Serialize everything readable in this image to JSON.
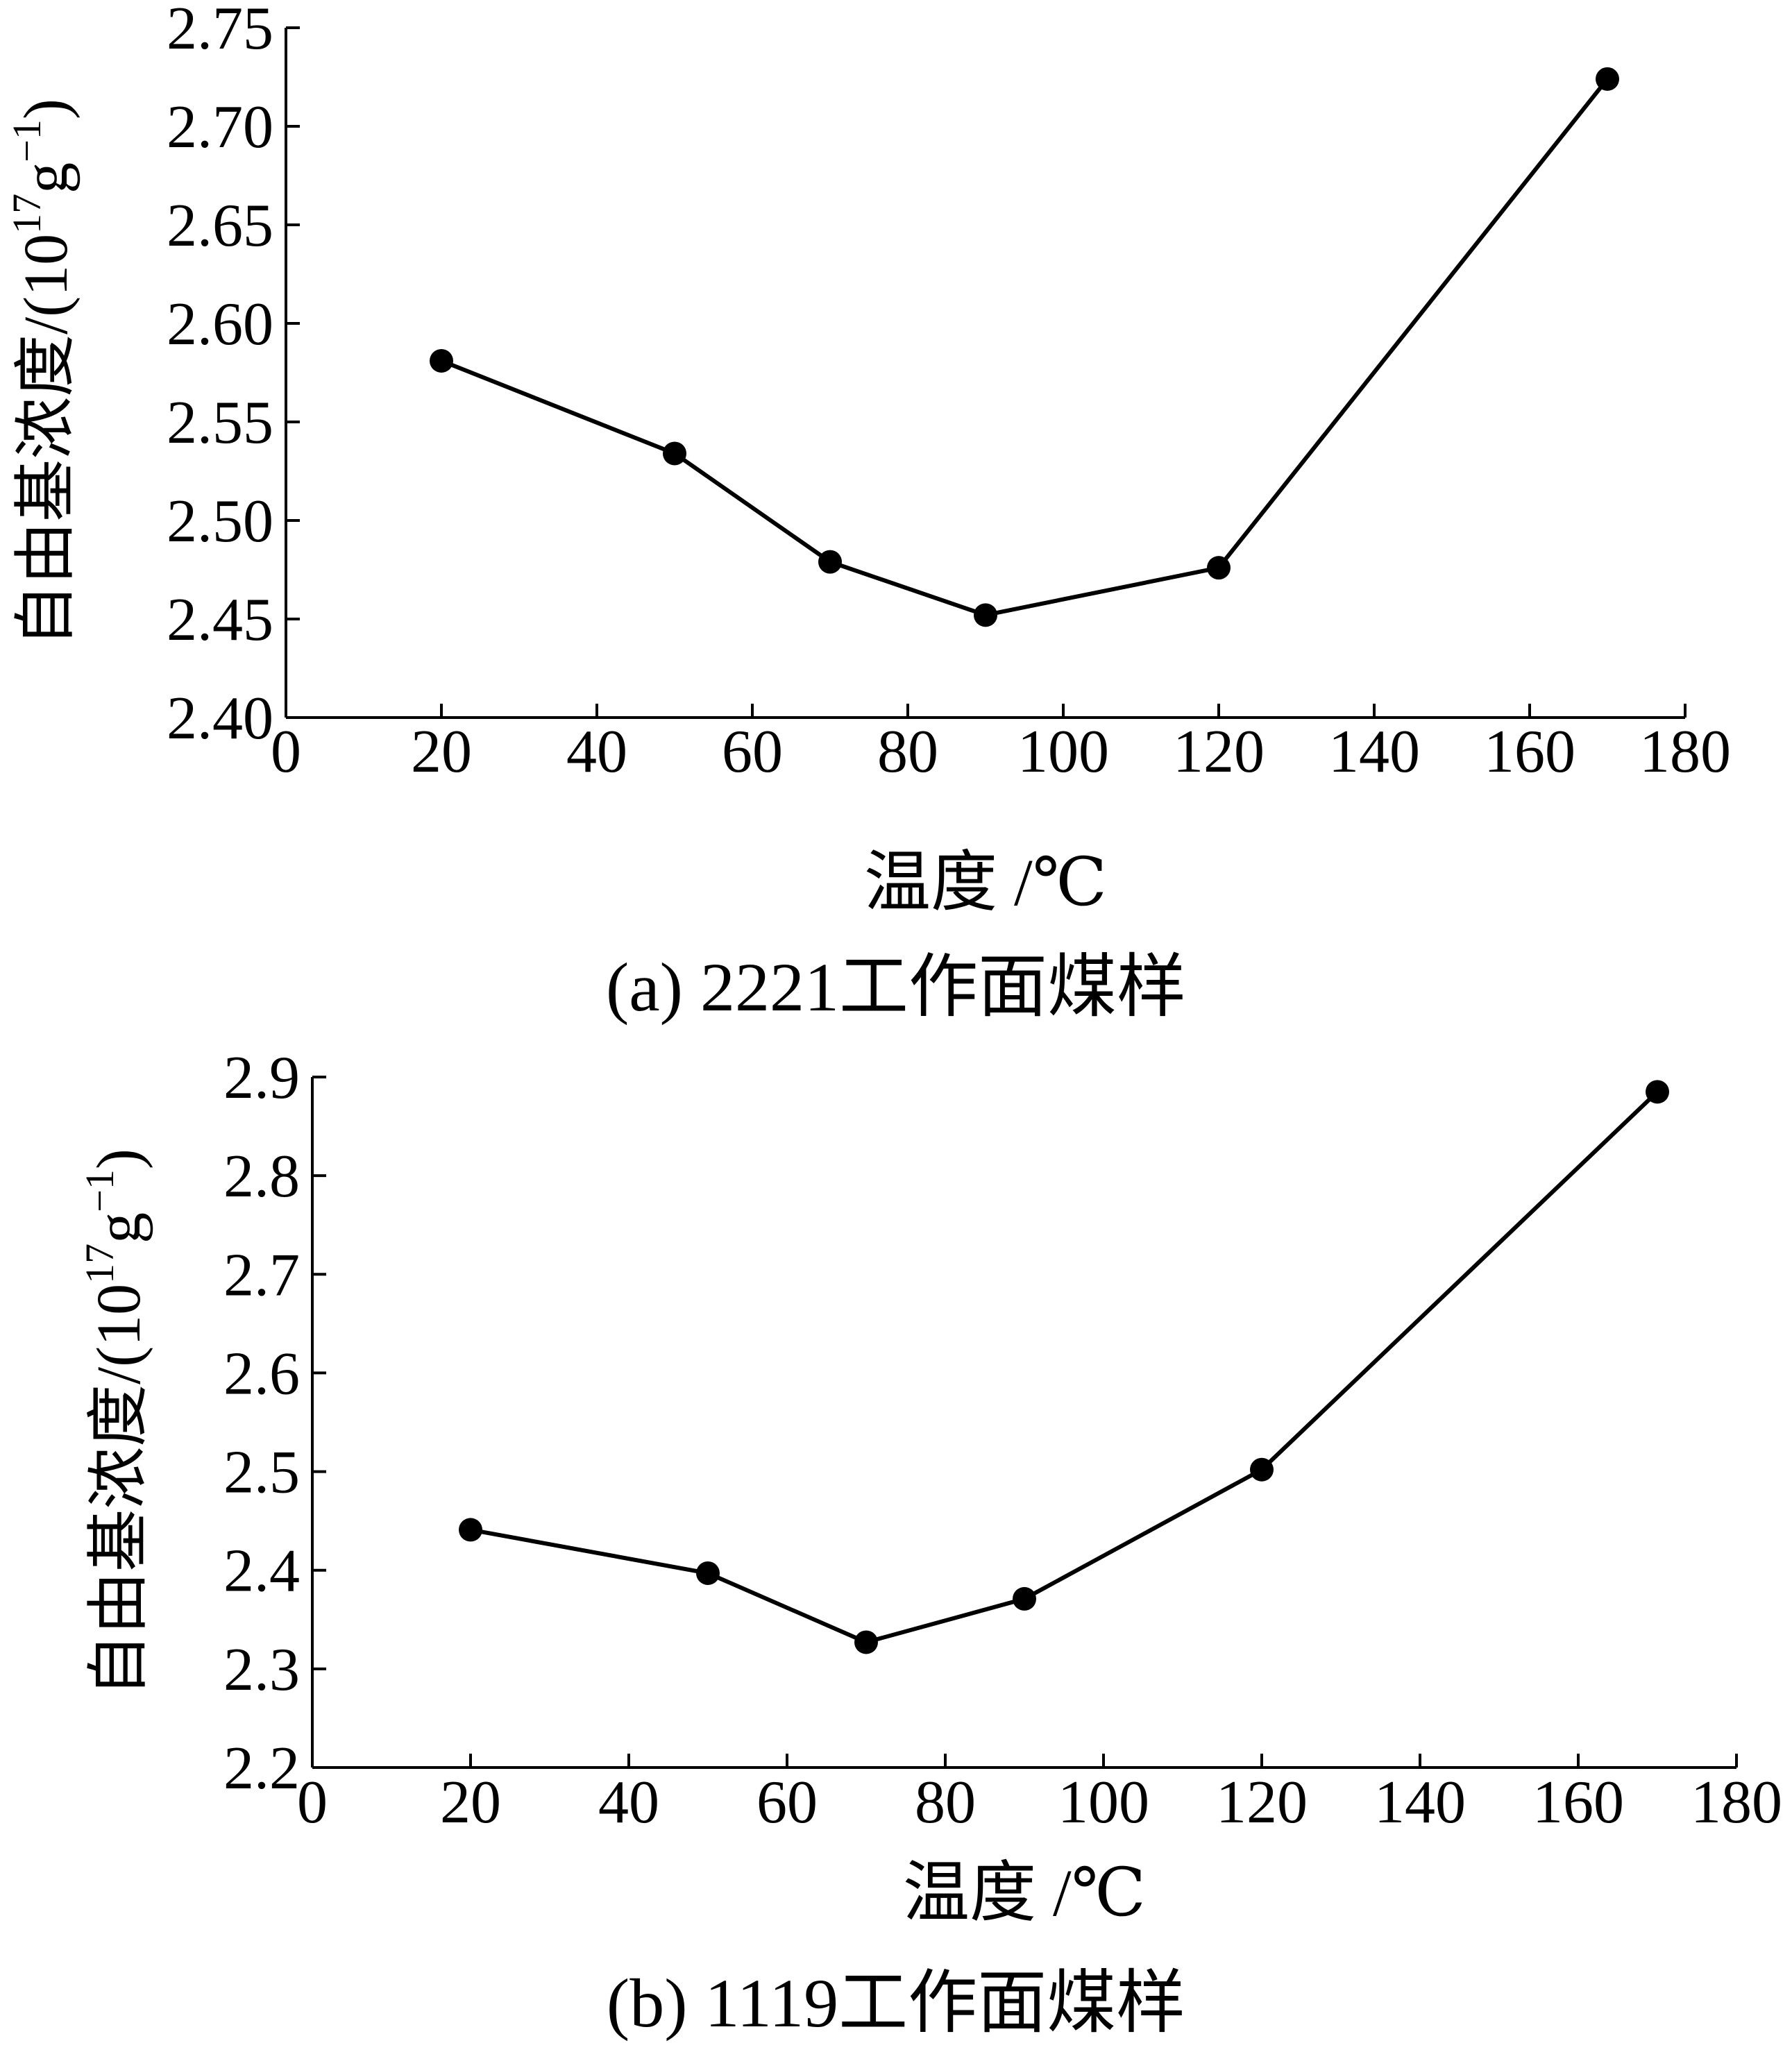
{
  "chart_data": [
    {
      "type": "line",
      "caption": "(a) 2221工作面煤样",
      "xlabel": "温度 /℃",
      "ylabel": "自由基浓度/(10¹⁷g⁻¹)",
      "ylabel_main": "自由基浓度/(10",
      "ylabel_exp1": "17",
      "ylabel_mid": "g",
      "ylabel_exp2": "−1",
      "ylabel_close": ")",
      "xlim": [
        0,
        180
      ],
      "ylim": [
        2.4,
        2.75
      ],
      "x_ticks": [
        0,
        20,
        40,
        60,
        80,
        100,
        120,
        140,
        160,
        180
      ],
      "x_tick_labels": [
        "0",
        "20",
        "40",
        "60",
        "80",
        "100",
        "120",
        "140",
        "160",
        "180"
      ],
      "y_ticks": [
        2.4,
        2.45,
        2.5,
        2.55,
        2.6,
        2.65,
        2.7,
        2.75
      ],
      "y_tick_labels": [
        "2.40",
        "2.45",
        "2.50",
        "2.55",
        "2.60",
        "2.65",
        "2.70",
        "2.75"
      ],
      "grid": false,
      "series": [
        {
          "x": [
            20,
            50,
            70,
            90,
            120,
            170
          ],
          "y": [
            2.581,
            2.534,
            2.479,
            2.452,
            2.476,
            2.724
          ],
          "color": "#000000"
        }
      ]
    },
    {
      "type": "line",
      "caption": "(b) 1119工作面煤样",
      "xlabel": "温度 /℃",
      "ylabel": "自由基浓度/(10¹⁷g⁻¹)",
      "ylabel_main": "自由基浓度/(10",
      "ylabel_exp1": "17",
      "ylabel_mid": "g",
      "ylabel_exp2": "−1",
      "ylabel_close": ")",
      "xlim": [
        0,
        180
      ],
      "ylim": [
        2.2,
        2.9
      ],
      "x_ticks": [
        0,
        20,
        40,
        60,
        80,
        100,
        120,
        140,
        160,
        180
      ],
      "x_tick_labels": [
        "0",
        "20",
        "40",
        "60",
        "80",
        "100",
        "120",
        "140",
        "160",
        "180"
      ],
      "y_ticks": [
        2.2,
        2.3,
        2.4,
        2.5,
        2.6,
        2.7,
        2.8,
        2.9
      ],
      "y_tick_labels": [
        "2.2",
        "2.3",
        "2.4",
        "2.5",
        "2.6",
        "2.7",
        "2.8",
        "2.9"
      ],
      "grid": false,
      "series": [
        {
          "x": [
            20,
            50,
            70,
            90,
            120,
            170
          ],
          "y": [
            2.441,
            2.397,
            2.327,
            2.371,
            2.502,
            2.885
          ],
          "color": "#000000"
        }
      ]
    }
  ]
}
